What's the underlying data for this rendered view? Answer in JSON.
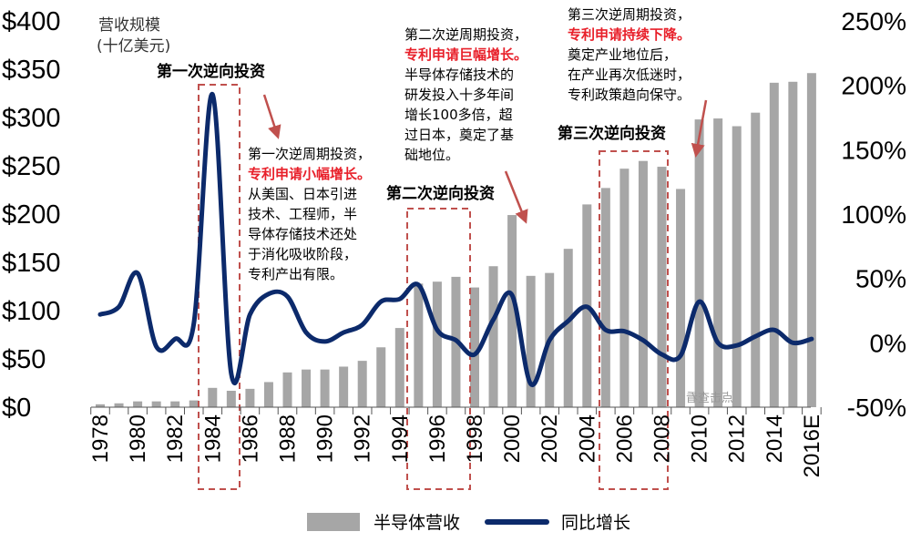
{
  "chart_data": {
    "type": "bar+line",
    "y_unit_label_line1": "营收规模",
    "y_unit_label_line2": "(十亿美元)",
    "ylim_left": [
      0,
      400
    ],
    "yticks_left": [
      "$0",
      "$50",
      "$100",
      "$150",
      "$200",
      "$250",
      "$300",
      "$350",
      "$400"
    ],
    "ylim_right": [
      -50,
      250
    ],
    "yticks_right": [
      "-50%",
      "0%",
      "50%",
      "100%",
      "150%",
      "200%",
      "250%"
    ],
    "categories": [
      "1978",
      "1979",
      "1980",
      "1981",
      "1982",
      "1983",
      "1984",
      "1985",
      "1986",
      "1987",
      "1988",
      "1989",
      "1990",
      "1991",
      "1992",
      "1993",
      "1994",
      "1995",
      "1996",
      "1997",
      "1998",
      "1999",
      "2000",
      "2001",
      "2002",
      "2003",
      "2004",
      "2005",
      "2006",
      "2007",
      "2008",
      "2009",
      "2010",
      "2011",
      "2012",
      "2013",
      "2014",
      "2015",
      "2016E"
    ],
    "x_tick_labels": [
      "1978",
      "1980",
      "1982",
      "1984",
      "1986",
      "1988",
      "1990",
      "1992",
      "1994",
      "1996",
      "1998",
      "2000",
      "2002",
      "2004",
      "2006",
      "2008",
      "2010",
      "2012",
      "2014",
      "2016E"
    ],
    "series": [
      {
        "name": "半导体营收",
        "kind": "bar",
        "axis": "left",
        "color": "#a6a6a6",
        "values": [
          3,
          4,
          6,
          6,
          6,
          7,
          20,
          17,
          19,
          26,
          36,
          39,
          39,
          42,
          48,
          62,
          82,
          128,
          130,
          135,
          124,
          146,
          199,
          136,
          139,
          164,
          210,
          227,
          247,
          255,
          249,
          226,
          298,
          299,
          291,
          305,
          336,
          337,
          346
        ]
      },
      {
        "name": "同比增长",
        "kind": "line",
        "axis": "right",
        "color": "#0c2a6b",
        "values": [
          22,
          28,
          54,
          -3,
          3,
          15,
          193,
          -24,
          22,
          38,
          36,
          8,
          1,
          8,
          14,
          32,
          34,
          45,
          10,
          2,
          -9,
          18,
          37,
          -32,
          2,
          17,
          28,
          10,
          9,
          2,
          -9,
          -10,
          32,
          0,
          -2,
          5,
          10,
          0,
          3
        ]
      }
    ],
    "legend_position": "bottom-center",
    "annotations": {
      "box1_title": "第一次逆向投资",
      "box2_title": "第二次逆向投资",
      "box3_title": "第三次逆向投资",
      "note1": [
        "第一次逆周期投资，",
        "专利申请小幅增长。",
        "从美国、日本引进",
        "技术、工程师，半",
        "导体存储技术还处",
        "于消化吸收阶段，",
        "专利产出有限。"
      ],
      "note2": [
        "第二次逆周期投资，",
        "专利申请巨幅增长。",
        "半导体存储技术的",
        "研发投入十多年间",
        "增长100多倍，超",
        "过日本，奠定了基",
        "础地位。"
      ],
      "note3": [
        "第三次逆周期投资，",
        "专利申请持续下降。",
        "奠定产业地位后，",
        "在产业再次低迷时，",
        "专利政策趋向保守。"
      ],
      "watermark": "点击查看"
    }
  },
  "colors": {
    "bar": "#a6a6a6",
    "line": "#0c2a6b",
    "box": "#c0504d",
    "red_text": "#e8202a",
    "arrow": "#c0504d"
  }
}
